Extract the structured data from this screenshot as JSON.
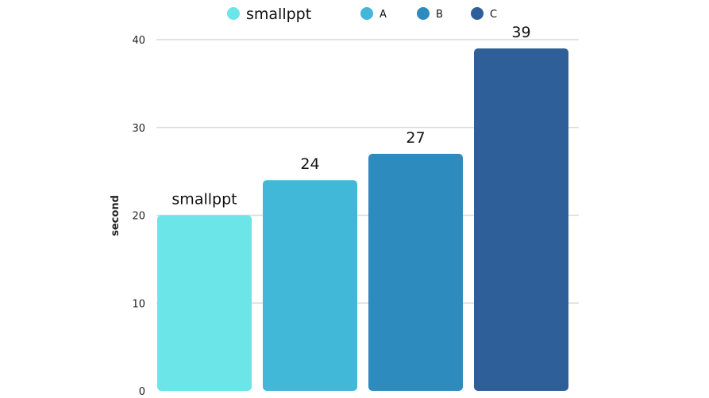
{
  "chart_data": {
    "type": "bar",
    "categories": [
      "smallppt",
      "A",
      "B",
      "C"
    ],
    "values": [
      20,
      24,
      27,
      39
    ],
    "data_labels": [
      "smallppt",
      "24",
      "27",
      "39"
    ],
    "colors": [
      "#6be5e8",
      "#42b8d8",
      "#2e8bbe",
      "#2f5f98"
    ],
    "ylabel": "second",
    "ylim": [
      0,
      40
    ],
    "yticks": [
      0,
      10,
      20,
      30,
      40
    ],
    "grid": true,
    "legend": {
      "placement": "top-center",
      "entries": [
        "smallppt",
        "A",
        "B",
        "C"
      ]
    }
  }
}
